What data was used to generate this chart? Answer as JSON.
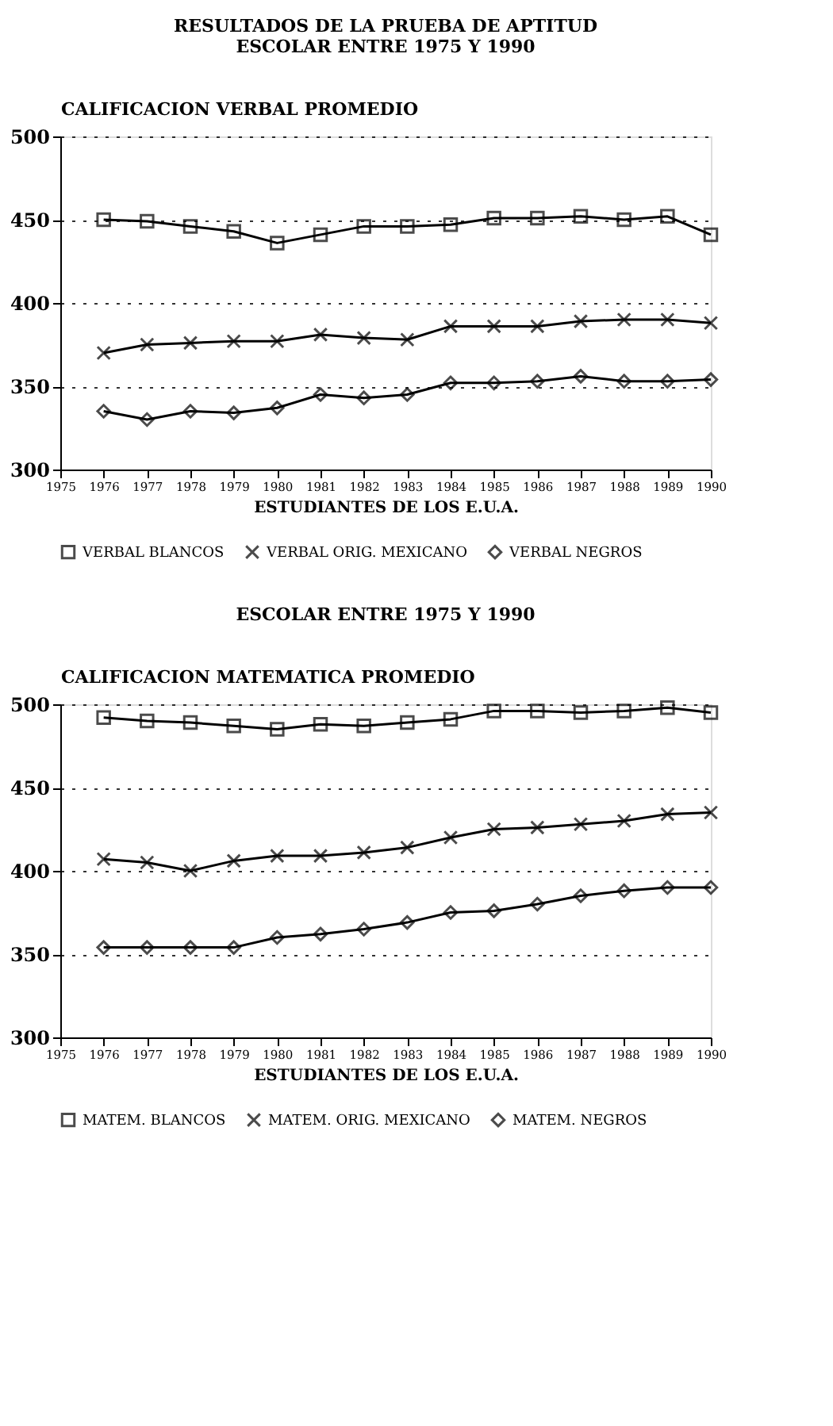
{
  "chart_data": [
    {
      "type": "line",
      "title": [
        "RESULTADOS DE LA PRUEBA DE APTITUD",
        "ESCOLAR ENTRE 1975 Y 1990"
      ],
      "ylabel": "CALIFICACION VERBAL PROMEDIO",
      "xlabel": "ESTUDIANTES DE LOS E.U.A.",
      "x": [
        1976,
        1977,
        1978,
        1979,
        1980,
        1981,
        1982,
        1983,
        1984,
        1985,
        1986,
        1987,
        1988,
        1989,
        1990
      ],
      "xlim": [
        1975,
        1990
      ],
      "xticks": [
        1975,
        1976,
        1977,
        1978,
        1979,
        1980,
        1981,
        1982,
        1983,
        1984,
        1985,
        1986,
        1987,
        1988,
        1989,
        1990
      ],
      "ylim": [
        300,
        500
      ],
      "yticks": [
        300,
        350,
        400,
        450,
        500
      ],
      "grid": "y",
      "legend": "bottom",
      "line_style": "solid",
      "series": [
        {
          "name": "VERBAL BLANCOS",
          "color": "#000000",
          "marker": "square",
          "values": [
            450,
            449,
            446,
            443,
            436,
            441,
            446,
            446,
            447,
            451,
            451,
            452,
            450,
            452,
            441
          ]
        },
        {
          "name": "VERBAL ORIG. MEXICANO",
          "color": "#000000",
          "marker": "cross",
          "values": [
            370,
            375,
            376,
            377,
            377,
            381,
            379,
            378,
            386,
            386,
            386,
            389,
            390,
            390,
            388
          ]
        },
        {
          "name": "VERBAL NEGROS",
          "color": "#000000",
          "marker": "diamond",
          "values": [
            335,
            330,
            335,
            334,
            337,
            345,
            343,
            345,
            352,
            352,
            353,
            356,
            353,
            353,
            354
          ]
        }
      ]
    },
    {
      "type": "line",
      "title": [
        "ESCOLAR ENTRE 1975 Y 1990"
      ],
      "ylabel": "CALIFICACION MATEMATICA PROMEDIO",
      "xlabel": "ESTUDIANTES DE LOS E.U.A.",
      "x": [
        1976,
        1977,
        1978,
        1979,
        1980,
        1981,
        1982,
        1983,
        1984,
        1985,
        1986,
        1987,
        1988,
        1989,
        1990
      ],
      "xlim": [
        1975,
        1990
      ],
      "xticks": [
        1975,
        1976,
        1977,
        1978,
        1979,
        1980,
        1981,
        1982,
        1983,
        1984,
        1985,
        1986,
        1987,
        1988,
        1989,
        1990
      ],
      "ylim": [
        300,
        500
      ],
      "yticks": [
        300,
        350,
        400,
        450,
        500
      ],
      "grid": "y",
      "legend": "bottom",
      "line_style": "solid",
      "series": [
        {
          "name": "MATEM. BLANCOS",
          "color": "#000000",
          "marker": "square",
          "values": [
            492,
            490,
            489,
            487,
            485,
            488,
            487,
            489,
            491,
            496,
            496,
            495,
            496,
            498,
            495
          ]
        },
        {
          "name": "MATEM. ORIG. MEXICANO",
          "color": "#000000",
          "marker": "cross",
          "values": [
            407,
            405,
            400,
            406,
            409,
            409,
            411,
            414,
            420,
            425,
            426,
            428,
            430,
            434,
            435
          ]
        },
        {
          "name": "MATEM. NEGROS",
          "color": "#000000",
          "marker": "diamond",
          "values": [
            354,
            354,
            354,
            354,
            360,
            362,
            365,
            369,
            375,
            376,
            380,
            385,
            388,
            390,
            390
          ]
        }
      ]
    }
  ]
}
